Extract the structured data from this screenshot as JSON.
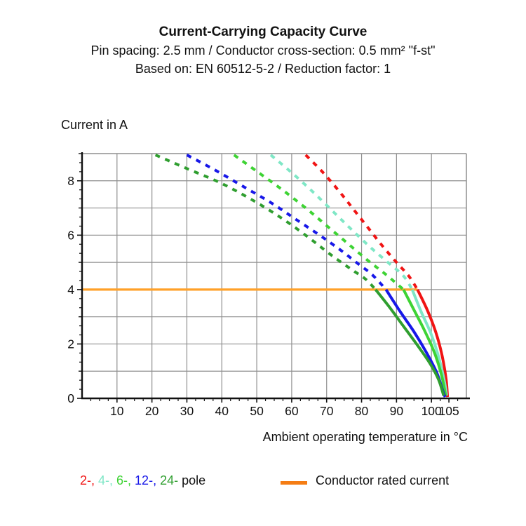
{
  "header": {
    "title": "Current-Carrying Capacity Curve",
    "subtitle": "Pin spacing: 2.5 mm / Conductor cross-section: 0.5 mm² \"f-st\"",
    "basis": "Based on: EN 60512-5-2 / Reduction factor: 1"
  },
  "axes": {
    "y_title": "Current in A",
    "x_title": "Ambient operating temperature in °C"
  },
  "legend": {
    "pole_items": [
      {
        "label": "2-,",
        "color": "#f01414"
      },
      {
        "label": "4-,",
        "color": "#7fe7c6"
      },
      {
        "label": "6-,",
        "color": "#3ed334"
      },
      {
        "label": "12-,",
        "color": "#1717e8"
      },
      {
        "label": "24-",
        "color": "#2f9e2f"
      }
    ],
    "pole_suffix": " pole",
    "rated_label": "Conductor rated current",
    "rated_swatch_color": "#f57d14"
  },
  "chart_data": {
    "type": "line",
    "title": "Current-Carrying Capacity Curve",
    "xlabel": "Ambient operating temperature in °C",
    "ylabel": "Current in A",
    "xlim": [
      0,
      110
    ],
    "ylim": [
      0,
      9
    ],
    "grid": "major, gray, on",
    "x_tick_labels": [
      10,
      20,
      30,
      40,
      50,
      60,
      70,
      80,
      90,
      100,
      105
    ],
    "x_gridline_values": [
      10,
      20,
      30,
      40,
      50,
      60,
      70,
      80,
      90,
      100
    ],
    "y_tick_labels": [
      0,
      2,
      4,
      6,
      8
    ],
    "y_gridline_values": [
      1,
      2,
      3,
      4,
      5,
      6,
      7,
      8
    ],
    "rated_current": {
      "value": 4,
      "x_start": 0,
      "x_end": 96,
      "color": "#ffa129",
      "label": "Conductor rated current"
    },
    "series": [
      {
        "name": "2-pole",
        "color": "#f01414",
        "dashed_above_rated": [
          [
            64,
            8.95
          ],
          [
            69,
            8.3
          ],
          [
            74,
            7.55
          ],
          [
            78,
            6.9
          ],
          [
            82,
            6.25
          ],
          [
            86,
            5.6
          ],
          [
            90,
            5.0
          ],
          [
            93.5,
            4.5
          ],
          [
            96,
            4.0
          ]
        ],
        "solid_below_rated": [
          [
            96,
            4.0
          ],
          [
            98.8,
            3.25
          ],
          [
            101.2,
            2.45
          ],
          [
            103,
            1.6
          ],
          [
            104.2,
            0.7
          ],
          [
            104.6,
            0.05
          ]
        ]
      },
      {
        "name": "4-pole",
        "color": "#7fe7c6",
        "dashed_above_rated": [
          [
            54,
            8.95
          ],
          [
            60,
            8.3
          ],
          [
            66,
            7.6
          ],
          [
            72,
            6.85
          ],
          [
            78,
            6.1
          ],
          [
            83,
            5.5
          ],
          [
            88,
            4.95
          ],
          [
            92,
            4.5
          ],
          [
            94.5,
            4.0
          ]
        ],
        "solid_below_rated": [
          [
            94.5,
            4.0
          ],
          [
            97,
            3.2
          ],
          [
            99.8,
            2.4
          ],
          [
            102,
            1.55
          ],
          [
            103.6,
            0.7
          ],
          [
            104.35,
            0.1
          ]
        ]
      },
      {
        "name": "6-pole",
        "color": "#3ed334",
        "dashed_above_rated": [
          [
            43.5,
            8.95
          ],
          [
            50,
            8.35
          ],
          [
            57,
            7.7
          ],
          [
            64,
            7.0
          ],
          [
            70,
            6.35
          ],
          [
            76,
            5.7
          ],
          [
            82,
            5.05
          ],
          [
            87,
            4.55
          ],
          [
            92,
            4.0
          ]
        ],
        "solid_below_rated": [
          [
            92,
            4.0
          ],
          [
            95,
            3.25
          ],
          [
            98,
            2.5
          ],
          [
            100.8,
            1.7
          ],
          [
            102.8,
            0.9
          ],
          [
            104.1,
            0.1
          ]
        ]
      },
      {
        "name": "12-pole",
        "color": "#1717e8",
        "dashed_above_rated": [
          [
            30,
            8.95
          ],
          [
            38,
            8.4
          ],
          [
            46,
            7.8
          ],
          [
            54,
            7.2
          ],
          [
            61,
            6.6
          ],
          [
            68,
            6.0
          ],
          [
            74,
            5.45
          ],
          [
            79,
            4.95
          ],
          [
            83,
            4.55
          ],
          [
            87,
            4.0
          ]
        ],
        "solid_below_rated": [
          [
            87,
            4.0
          ],
          [
            91,
            3.2
          ],
          [
            95,
            2.45
          ],
          [
            98.5,
            1.7
          ],
          [
            101.5,
            0.95
          ],
          [
            103.2,
            0.3
          ],
          [
            103.9,
            0.05
          ]
        ]
      },
      {
        "name": "24-pole",
        "color": "#2f9e2f",
        "dashed_above_rated": [
          [
            21,
            8.95
          ],
          [
            30,
            8.45
          ],
          [
            40,
            7.9
          ],
          [
            50,
            7.2
          ],
          [
            58,
            6.55
          ],
          [
            65,
            5.9
          ],
          [
            71,
            5.3
          ],
          [
            77,
            4.75
          ],
          [
            81,
            4.4
          ],
          [
            84,
            4.0
          ]
        ],
        "solid_below_rated": [
          [
            84,
            4.0
          ],
          [
            88,
            3.35
          ],
          [
            92,
            2.65
          ],
          [
            96,
            1.95
          ],
          [
            99.5,
            1.3
          ],
          [
            102,
            0.7
          ],
          [
            103.5,
            0.1
          ]
        ]
      }
    ]
  }
}
